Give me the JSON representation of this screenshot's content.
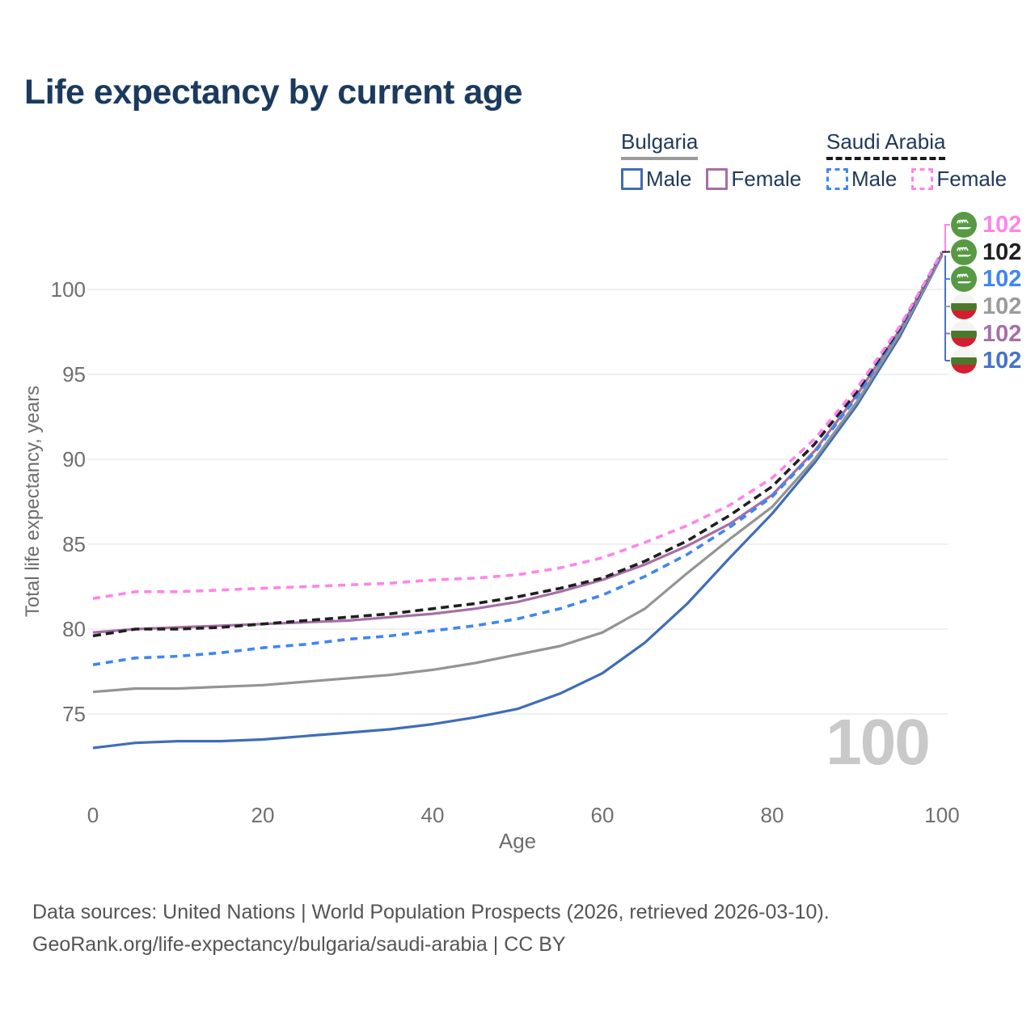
{
  "title": "Life expectancy by current age",
  "legend": {
    "bulgaria": {
      "label": "Bulgaria",
      "underline_style": "solid",
      "underline_color": "#9a9a9a",
      "male_label": "Male",
      "male_color": "#3f6db8",
      "female_label": "Female",
      "female_color": "#a66fa6"
    },
    "saudi": {
      "label": "Saudi Arabia",
      "underline_style": "dashed",
      "underline_color": "#1a1a1a",
      "male_label": "Male",
      "male_color": "#3f86f0",
      "female_label": "Female",
      "female_color": "#ff84e8"
    }
  },
  "axes": {
    "y_title": "Total life expectancy, years",
    "x_title": "Age",
    "y_ticks": [
      75,
      80,
      85,
      90,
      95,
      100
    ],
    "x_ticks": [
      0,
      20,
      40,
      60,
      80,
      100
    ]
  },
  "watermark": "100",
  "footer": {
    "line1": "Data sources: United Nations | World Population Prospects (2026, retrieved 2026-03-10).",
    "line2": "GeoRank.org/life-expectancy/bulgaria/saudi-arabia | CC BY"
  },
  "chart_data": {
    "type": "line",
    "title": "Life expectancy by current age",
    "xlabel": "Age",
    "ylabel": "Total life expectancy, years",
    "xlim": [
      0,
      100
    ],
    "ylim": [
      72,
      103
    ],
    "grid": "horizontal",
    "legend_position": "top-right",
    "x": [
      0,
      5,
      10,
      15,
      20,
      25,
      30,
      35,
      40,
      45,
      50,
      55,
      60,
      65,
      70,
      75,
      80,
      85,
      90,
      95,
      100
    ],
    "series": [
      {
        "id": "bulgaria-male",
        "name": "Bulgaria Male",
        "country": "Bulgaria",
        "sex": "male",
        "color": "#3f6db8",
        "dash": "none",
        "values": [
          73.0,
          73.3,
          73.4,
          73.4,
          73.5,
          73.7,
          73.9,
          74.1,
          74.4,
          74.8,
          75.3,
          76.2,
          77.4,
          79.2,
          81.5,
          84.2,
          86.8,
          89.8,
          93.2,
          97.2,
          102.0
        ],
        "end_label": "102"
      },
      {
        "id": "bulgaria-total",
        "name": "Bulgaria",
        "country": "Bulgaria",
        "sex": "both",
        "color": "#949494",
        "dash": "none",
        "values": [
          76.3,
          76.5,
          76.5,
          76.6,
          76.7,
          76.9,
          77.1,
          77.3,
          77.6,
          78.0,
          78.5,
          79.0,
          79.8,
          81.2,
          83.3,
          85.3,
          87.2,
          90.0,
          93.4,
          97.4,
          102.0
        ],
        "end_label": "102"
      },
      {
        "id": "bulgaria-female",
        "name": "Bulgaria Female",
        "country": "Bulgaria",
        "sex": "female",
        "color": "#a66fa6",
        "dash": "none",
        "values": [
          79.8,
          80.0,
          80.1,
          80.2,
          80.3,
          80.4,
          80.5,
          80.7,
          80.9,
          81.2,
          81.6,
          82.2,
          82.9,
          83.8,
          84.9,
          86.2,
          87.9,
          90.5,
          93.8,
          97.6,
          102.1
        ],
        "end_label": "102"
      },
      {
        "id": "saudi-male",
        "name": "Saudi Arabia Male",
        "country": "Saudi Arabia",
        "sex": "male",
        "color": "#3f86f0",
        "dash": "9 7",
        "values": [
          77.9,
          78.3,
          78.4,
          78.6,
          78.9,
          79.1,
          79.4,
          79.6,
          79.9,
          80.2,
          80.6,
          81.2,
          82.0,
          83.1,
          84.4,
          86.0,
          87.8,
          90.4,
          93.7,
          97.6,
          102.1
        ],
        "end_label": "102"
      },
      {
        "id": "saudi-total",
        "name": "Saudi Arabia",
        "country": "Saudi Arabia",
        "sex": "both",
        "color": "#1f1f1f",
        "dash": "10 6",
        "values": [
          79.6,
          80.0,
          80.0,
          80.1,
          80.3,
          80.5,
          80.7,
          80.9,
          81.2,
          81.5,
          81.9,
          82.4,
          83.0,
          84.0,
          85.2,
          86.7,
          88.4,
          90.9,
          94.0,
          97.7,
          102.2
        ],
        "end_label": "102"
      },
      {
        "id": "saudi-female",
        "name": "Saudi Arabia Female",
        "country": "Saudi Arabia",
        "sex": "female",
        "color": "#ff84e8",
        "dash": "9 7",
        "values": [
          81.8,
          82.2,
          82.2,
          82.3,
          82.4,
          82.5,
          82.6,
          82.7,
          82.9,
          83.0,
          83.2,
          83.6,
          84.2,
          85.1,
          86.1,
          87.3,
          88.9,
          91.2,
          94.2,
          97.8,
          102.2
        ],
        "end_label": "102"
      }
    ]
  },
  "end_labels": [
    {
      "series": "saudi-female",
      "flag": "saudi-arabia",
      "value": "102",
      "color": "#ff84e8"
    },
    {
      "series": "saudi-total",
      "flag": "saudi-arabia",
      "value": "102",
      "color": "#1f1f1f"
    },
    {
      "series": "saudi-male",
      "flag": "saudi-arabia",
      "value": "102",
      "color": "#3f86f0"
    },
    {
      "series": "bulgaria-total",
      "flag": "bulgaria",
      "value": "102",
      "color": "#9b9b9b"
    },
    {
      "series": "bulgaria-female",
      "flag": "bulgaria",
      "value": "102",
      "color": "#a66fa6"
    },
    {
      "series": "bulgaria-male",
      "flag": "bulgaria",
      "value": "102",
      "color": "#4673c8"
    }
  ],
  "colors": {
    "title": "#1b3a5e",
    "legend_text": "#20395b",
    "grid": "#ececec",
    "tick_label": "#6f6f6f",
    "axis_title": "#6d6d6d",
    "watermark": "#c9c9c9",
    "footer": "#545454",
    "saudi_flag_green": "#579a43",
    "bulgaria_flag_green": "#4c782c",
    "bulgaria_flag_red": "#d31f2f",
    "bulgaria_flag_white": "#f4f4f2"
  }
}
